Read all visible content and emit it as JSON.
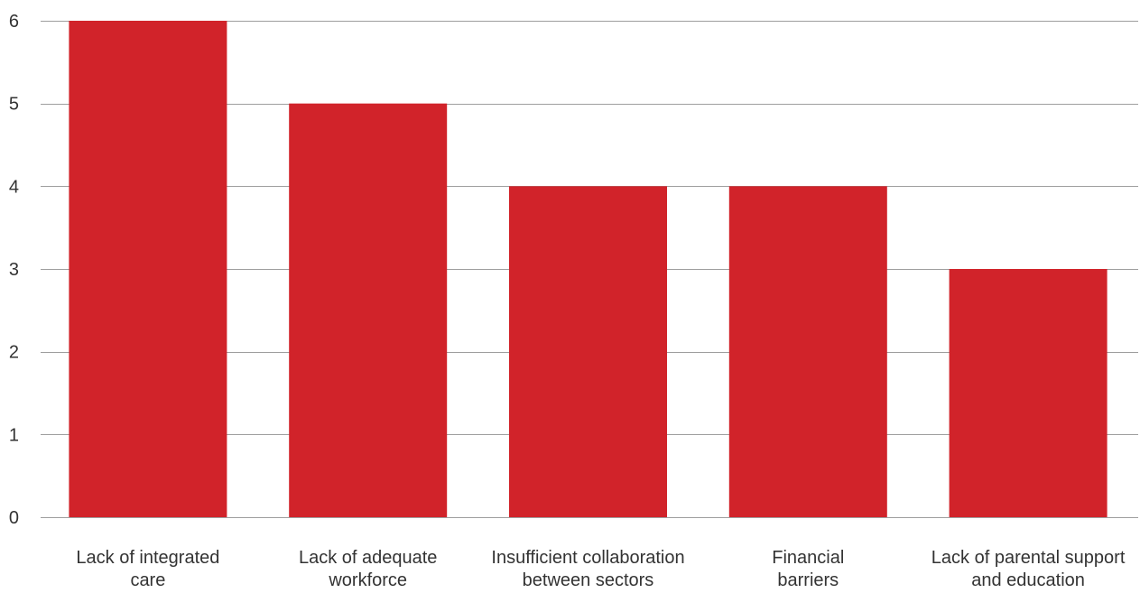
{
  "chart_data": {
    "type": "bar",
    "title": "",
    "xlabel": "",
    "ylabel": "",
    "categories": [
      [
        "Lack of integrated",
        "care"
      ],
      [
        "Lack of adequate",
        "workforce"
      ],
      [
        "Insufficient collaboration",
        "between sectors"
      ],
      [
        "Financial",
        "barriers"
      ],
      [
        "Lack of parental support",
        "and education"
      ]
    ],
    "values": [
      6,
      5,
      4,
      4,
      3
    ],
    "ylim": [
      0,
      6
    ],
    "yticks": [
      "0",
      "1",
      "2",
      "3",
      "4",
      "5",
      "6"
    ],
    "grid": true,
    "legend": "none",
    "colors": {
      "bar": "#d1232a",
      "grid": "#9e9e9e",
      "text": "#333333"
    }
  }
}
